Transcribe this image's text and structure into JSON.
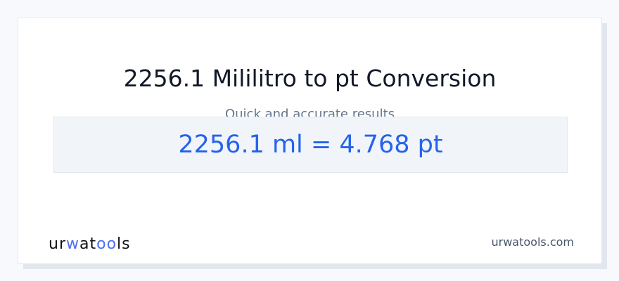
{
  "title": "2256.1 Mililitro to pt Conversion",
  "subtitle": "Quick and accurate results",
  "result": "2256.1 ml = 4.768 pt",
  "logo": {
    "text": "urwatools",
    "part1": "ur",
    "part2": "w",
    "part3": "at",
    "part4": "oo",
    "part5": "ls"
  },
  "site": "urwatools.com",
  "colors": {
    "accent": "#2563eb",
    "logo_accent": "#4f6ef2"
  }
}
